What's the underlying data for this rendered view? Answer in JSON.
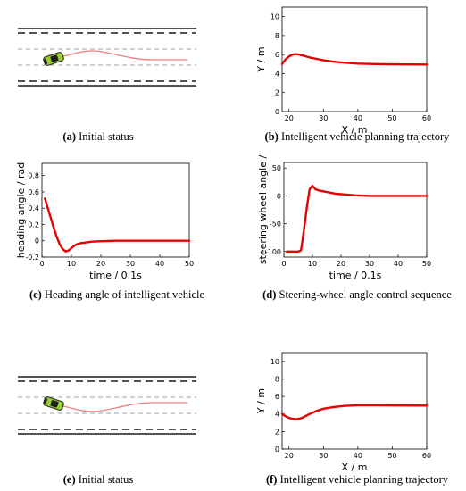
{
  "figure": {
    "panels": [
      {
        "id": "a",
        "type": "scene",
        "label": "(a)",
        "caption": "Initial status",
        "road_color": "#1a1a1a",
        "lane_dash_color": "#a0a0a0",
        "path_color": "#f08080",
        "car_color": "#9acd32",
        "path_shape": "up"
      },
      {
        "id": "b",
        "type": "line",
        "label": "(b)",
        "caption": "Intelligent vehicle planning trajectory"
      },
      {
        "id": "c",
        "type": "line",
        "label": "(c)",
        "caption": "Heading angle of intelligent vehicle"
      },
      {
        "id": "d",
        "type": "line",
        "label": "(d)",
        "caption": "Steering-wheel angle control sequence"
      },
      {
        "id": "e",
        "type": "scene",
        "label": "(e)",
        "caption": "Initial status",
        "road_color": "#1a1a1a",
        "lane_dash_color": "#a0a0a0",
        "path_color": "#f08080",
        "car_color": "#9acd32",
        "path_shape": "down"
      },
      {
        "id": "f",
        "type": "line",
        "label": "(f)",
        "caption": "Intelligent vehicle planning trajectory"
      }
    ]
  },
  "chart_data": [
    {
      "panel": "b",
      "type": "line",
      "xlabel": "X / m",
      "ylabel": "Y / m",
      "xlim": [
        18,
        60
      ],
      "ylim": [
        0,
        11
      ],
      "xticks": [
        20,
        30,
        40,
        50,
        60
      ],
      "yticks": [
        0,
        2,
        4,
        6,
        8,
        10
      ],
      "grid": false,
      "line_color": "#e60000",
      "x": [
        18,
        19,
        20,
        21,
        22,
        23,
        24,
        26,
        28,
        30,
        33,
        36,
        40,
        45,
        50,
        55,
        60
      ],
      "y": [
        5.0,
        5.5,
        5.8,
        6.0,
        6.05,
        6.0,
        5.9,
        5.7,
        5.55,
        5.4,
        5.25,
        5.15,
        5.05,
        5.0,
        4.97,
        4.96,
        4.95
      ]
    },
    {
      "panel": "c",
      "type": "line",
      "xlabel": "time / 0.1s",
      "ylabel": "heading angle / rad",
      "xlim": [
        0,
        50
      ],
      "ylim": [
        -0.2,
        0.95
      ],
      "xticks": [
        0,
        10,
        20,
        30,
        40,
        50
      ],
      "yticks": [
        -0.2,
        0,
        0.2,
        0.4,
        0.6,
        0.8
      ],
      "grid": false,
      "line_color": "#e60000",
      "x": [
        1,
        2,
        3,
        4,
        5,
        6,
        7,
        8,
        9,
        10,
        11,
        12,
        13,
        15,
        17,
        20,
        25,
        30,
        35,
        40,
        50
      ],
      "y": [
        0.52,
        0.4,
        0.28,
        0.16,
        0.05,
        -0.04,
        -0.1,
        -0.13,
        -0.12,
        -0.09,
        -0.06,
        -0.04,
        -0.03,
        -0.02,
        -0.01,
        -0.005,
        0.0,
        0.0,
        0.0,
        0.0,
        0.0
      ]
    },
    {
      "panel": "d",
      "type": "line",
      "xlabel": "time / 0.1s",
      "ylabel": "steering wheel angle /",
      "xlim": [
        0,
        50
      ],
      "ylim": [
        -110,
        60
      ],
      "xticks": [
        0,
        10,
        20,
        30,
        40,
        50
      ],
      "yticks": [
        -100,
        -50,
        0,
        50
      ],
      "grid": false,
      "line_color": "#e60000",
      "x": [
        1,
        2,
        3,
        4,
        5,
        6,
        7,
        8,
        9,
        10,
        11,
        12,
        14,
        16,
        18,
        20,
        25,
        30,
        35,
        40,
        50
      ],
      "y": [
        -100,
        -100,
        -100,
        -100,
        -100,
        -98,
        -62,
        -22,
        12,
        18,
        12,
        10,
        8,
        6,
        4,
        3,
        1,
        0,
        0,
        0,
        0
      ]
    },
    {
      "panel": "f",
      "type": "line",
      "xlabel": "X / m",
      "ylabel": "Y / m",
      "xlim": [
        18,
        60
      ],
      "ylim": [
        0,
        11
      ],
      "xticks": [
        20,
        30,
        40,
        50,
        60
      ],
      "yticks": [
        0,
        2,
        4,
        6,
        8,
        10
      ],
      "grid": false,
      "line_color": "#e60000",
      "x": [
        18,
        19,
        20,
        21,
        22,
        23,
        24,
        26,
        28,
        30,
        33,
        36,
        40,
        45,
        50,
        55,
        60
      ],
      "y": [
        4.0,
        3.75,
        3.55,
        3.45,
        3.4,
        3.45,
        3.6,
        4.0,
        4.35,
        4.6,
        4.8,
        4.92,
        5.0,
        5.0,
        4.98,
        4.97,
        4.96
      ]
    }
  ]
}
